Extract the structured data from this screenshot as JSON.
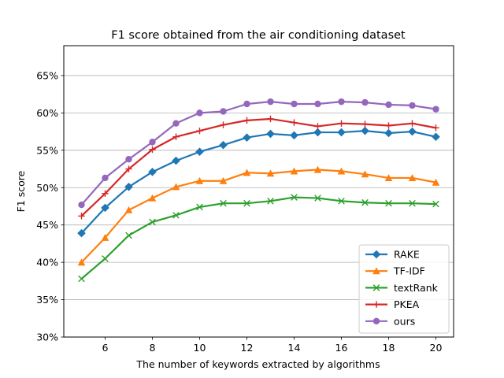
{
  "chart_data": {
    "type": "line",
    "title": "F1 score obtained from the air conditioning dataset",
    "xlabel": "The number of keywords extracted by algorithms",
    "ylabel": "F1 score",
    "x": [
      5,
      6,
      7,
      8,
      9,
      10,
      11,
      12,
      13,
      14,
      15,
      16,
      17,
      18,
      19,
      20
    ],
    "xlim": [
      4.25,
      20.75
    ],
    "ylim": [
      30,
      69
    ],
    "xticks": [
      6,
      8,
      10,
      12,
      14,
      16,
      18,
      20
    ],
    "yticks": [
      30,
      35,
      40,
      45,
      50,
      55,
      60,
      65
    ],
    "ytick_labels": [
      "30%",
      "35%",
      "40%",
      "45%",
      "50%",
      "55%",
      "60%",
      "65%"
    ],
    "grid": "horizontal",
    "legend_position": "lower-right",
    "series": [
      {
        "name": "RAKE",
        "color": "#1f77b4",
        "marker": "diamond",
        "values": [
          43.9,
          47.3,
          50.1,
          52.1,
          53.6,
          54.8,
          55.7,
          56.7,
          57.2,
          57.0,
          57.4,
          57.4,
          57.6,
          57.3,
          57.5,
          56.8
        ]
      },
      {
        "name": "TF-IDF",
        "color": "#ff7f0e",
        "marker": "triangle",
        "values": [
          40.0,
          43.3,
          47.0,
          48.6,
          50.1,
          50.9,
          50.9,
          52.0,
          51.9,
          52.2,
          52.4,
          52.2,
          51.8,
          51.3,
          51.3,
          50.7
        ]
      },
      {
        "name": "textRank",
        "color": "#2ca02c",
        "marker": "x",
        "values": [
          37.8,
          40.5,
          43.6,
          45.4,
          46.3,
          47.4,
          47.9,
          47.9,
          48.2,
          48.7,
          48.6,
          48.2,
          48.0,
          47.9,
          47.9,
          47.8
        ]
      },
      {
        "name": "PKEA",
        "color": "#d62728",
        "marker": "plus",
        "values": [
          46.2,
          49.2,
          52.5,
          55.1,
          56.8,
          57.6,
          58.4,
          59.0,
          59.2,
          58.7,
          58.2,
          58.6,
          58.5,
          58.3,
          58.6,
          58.0
        ]
      },
      {
        "name": "ours",
        "color": "#9467bd",
        "marker": "circle",
        "values": [
          47.7,
          51.3,
          53.8,
          56.1,
          58.6,
          60.0,
          60.2,
          61.2,
          61.5,
          61.2,
          61.2,
          61.5,
          61.4,
          61.1,
          61.0,
          60.5
        ]
      }
    ]
  }
}
